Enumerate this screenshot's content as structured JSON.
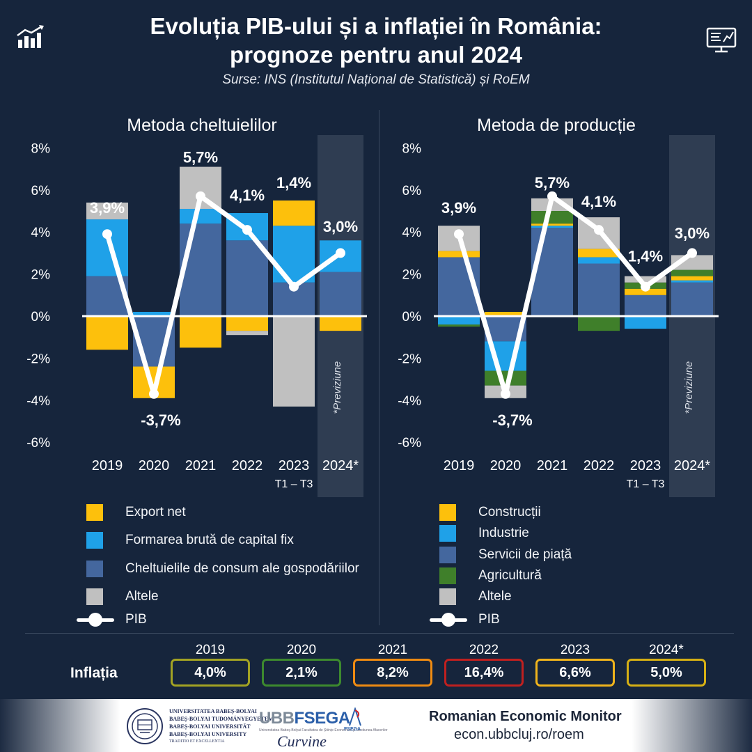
{
  "header": {
    "title_line1": "Evoluția PIB-ului și a inflației în România:",
    "title_line2": "prognoze pentru anul 2024",
    "subtitle": "Surse:  INS (Institutul Național de Statistică)  și RoEM"
  },
  "icons": {
    "left": "bar-chart-trend-icon",
    "right": "monitor-report-icon"
  },
  "chart_data": [
    {
      "type": "bar",
      "title": "Metoda cheltuielilor",
      "stacked": true,
      "categories": [
        "2019",
        "2020",
        "2021",
        "2022",
        "2023",
        "2024*"
      ],
      "category_sublabels": [
        "",
        "",
        "",
        "",
        "T1 – T3",
        ""
      ],
      "forecast_category": "2024*",
      "forecast_label": "*Previziune",
      "ylim": [
        -6,
        8
      ],
      "y_ticks": [
        8,
        6,
        4,
        2,
        0,
        -2,
        -4,
        -6
      ],
      "y_tick_labels": [
        "8%",
        "6%",
        "4%",
        "2%",
        "0%",
        "-2%",
        "-4%",
        "-6%"
      ],
      "series": [
        {
          "name": "Cheltuielile de consum ale gospodăriilor",
          "color": "#44679e",
          "values": [
            1.9,
            -2.4,
            4.4,
            3.6,
            1.6,
            2.1
          ]
        },
        {
          "name": "Formarea brută de capital fix",
          "color": "#1fa1e8",
          "values": [
            2.7,
            0.2,
            0.7,
            1.3,
            2.7,
            1.5
          ]
        },
        {
          "name": "Export net",
          "color": "#fdc00c",
          "values": [
            -1.6,
            -1.5,
            -1.5,
            -0.7,
            1.2,
            -0.7
          ]
        },
        {
          "name": "Altele",
          "color": "#c0c0c0",
          "values": [
            0.8,
            0.0,
            2.0,
            -0.2,
            -4.3,
            0.0
          ]
        }
      ],
      "line": {
        "name": "PIB",
        "color": "#ffffff",
        "values": [
          3.9,
          -3.7,
          5.7,
          4.1,
          1.4,
          3.0
        ],
        "labels": [
          "3,9%",
          "-3,7%",
          "5,7%",
          "4,1%",
          "1,4%",
          "3,0%"
        ]
      }
    },
    {
      "type": "bar",
      "title": "Metoda de producție",
      "stacked": true,
      "categories": [
        "2019",
        "2020",
        "2021",
        "2022",
        "2023",
        "2024*"
      ],
      "category_sublabels": [
        "",
        "",
        "",
        "",
        "T1 – T3",
        ""
      ],
      "forecast_category": "2024*",
      "forecast_label": "*Previziune",
      "ylim": [
        -6,
        8
      ],
      "y_ticks": [
        8,
        6,
        4,
        2,
        0,
        -2,
        -4,
        -6
      ],
      "y_tick_labels": [
        "8%",
        "6%",
        "4%",
        "2%",
        "0%",
        "-2%",
        "-4%",
        "-6%"
      ],
      "series": [
        {
          "name": "Servicii de piață",
          "color": "#44679e",
          "values": [
            2.8,
            -1.2,
            4.2,
            2.5,
            1.0,
            1.6
          ]
        },
        {
          "name": "Industrie",
          "color": "#1fa1e8",
          "values": [
            -0.4,
            -1.4,
            0.1,
            0.3,
            -0.6,
            0.1
          ]
        },
        {
          "name": "Construcții",
          "color": "#fdc00c",
          "values": [
            0.3,
            0.2,
            0.1,
            0.4,
            0.3,
            0.2
          ]
        },
        {
          "name": "Agricultură",
          "color": "#3f7f2a",
          "values": [
            -0.1,
            -0.7,
            0.6,
            -0.7,
            0.3,
            0.3
          ]
        },
        {
          "name": "Altele",
          "color": "#c0c0c0",
          "values": [
            1.2,
            -0.6,
            0.6,
            1.5,
            0.3,
            0.7
          ]
        }
      ],
      "line": {
        "name": "PIB",
        "color": "#ffffff",
        "values": [
          3.9,
          -3.7,
          5.7,
          4.1,
          1.4,
          3.0
        ],
        "labels": [
          "3,9%",
          "-3,7%",
          "5,7%",
          "4,1%",
          "1,4%",
          "3,0%"
        ]
      }
    }
  ],
  "legend_left": [
    {
      "label": "Export net",
      "color": "#fdc00c"
    },
    {
      "label": "Formarea brută de capital fix",
      "color": "#1fa1e8"
    },
    {
      "label": "Cheltuielile de consum ale gospodăriilor",
      "color": "#44679e"
    },
    {
      "label": "Altele",
      "color": "#c0c0c0"
    },
    {
      "label": "PIB",
      "kind": "line"
    }
  ],
  "legend_right": [
    {
      "label": "Construcții",
      "color": "#fdc00c"
    },
    {
      "label": "Industrie",
      "color": "#1fa1e8"
    },
    {
      "label": "Servicii de piață",
      "color": "#44679e"
    },
    {
      "label": "Agricultură",
      "color": "#3f7f2a"
    },
    {
      "label": "Altele",
      "color": "#c0c0c0"
    },
    {
      "label": "PIB",
      "kind": "line"
    }
  ],
  "inflation": {
    "label": "Inflația",
    "items": [
      {
        "year": "2019",
        "value": "4,0%",
        "color": "#a3a323"
      },
      {
        "year": "2020",
        "value": "2,1%",
        "color": "#3d8a2e"
      },
      {
        "year": "2021",
        "value": "8,2%",
        "color": "#ef8b12"
      },
      {
        "year": "2022",
        "value": "16,4%",
        "color": "#c0201f"
      },
      {
        "year": "2023",
        "value": "6,6%",
        "color": "#f0b41c"
      },
      {
        "year": "2024*",
        "value": "5,0%",
        "color": "#d6b014"
      }
    ]
  },
  "footer": {
    "university_lines": [
      "UNIVERSITATEA BABEȘ-BOLYAI",
      "BABEȘ-BOLYAI TUDOMÁNYEGYETEM",
      "BABEȘ-BOLYAI UNIVERSITÄT",
      "BABEȘ-BOLYAI UNIVERSITY"
    ],
    "university_motto": "TRADITIO ET EXCELLENTIA",
    "fsega_ubb": "UBB",
    "fsega_name": "FSEGA",
    "fsega_subtitle": "Universitatea Babeș-Bolyai Facultatea de Științe Economice și Gestiunea Afacerilor",
    "fsega_mark": "FSEGA",
    "cursive": "Curvine",
    "roem_title": "Romanian Economic Monitor",
    "roem_url": "econ.ubbcluj.ro/roem"
  }
}
